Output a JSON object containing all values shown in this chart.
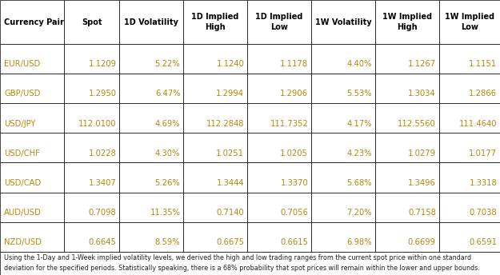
{
  "headers": [
    "Currency Pair",
    "Spot",
    "1D Volatility",
    "1D Implied\nHigh",
    "1D Implied\nLow",
    "1W Volatility",
    "1W Implied\nHigh",
    "1W Implied\nLow"
  ],
  "rows": [
    [
      "EUR/USD",
      "1.1209",
      "5.22%",
      "1.1240",
      "1.1178",
      "4.40%",
      "1.1267",
      "1.1151"
    ],
    [
      "GBP/USD",
      "1.2950",
      "6.47%",
      "1.2994",
      "1.2906",
      "5.53%",
      "1.3034",
      "1.2866"
    ],
    [
      "USD/JPY",
      "112.0100",
      "4.69%",
      "112.2848",
      "111.7352",
      "4.17%",
      "112.5560",
      "111.4640"
    ],
    [
      "USD/CHF",
      "1.0228",
      "4.30%",
      "1.0251",
      "1.0205",
      "4.23%",
      "1.0279",
      "1.0177"
    ],
    [
      "USD/CAD",
      "1.3407",
      "5.26%",
      "1.3444",
      "1.3370",
      "5.68%",
      "1.3496",
      "1.3318"
    ],
    [
      "AUD/USD",
      "0.7098",
      "11.35%",
      "0.7140",
      "0.7056",
      "7.20%",
      "0.7158",
      "0.7038"
    ],
    [
      "NZD/USD",
      "0.6645",
      "8.59%",
      "0.6675",
      "0.6615",
      "6.98%",
      "0.6699",
      "0.6591"
    ]
  ],
  "footer_line1": "Using the 1-Day and 1-Week implied volatility levels, we derived the high and low trading ranges from the current spot price within one standard",
  "footer_line2": "deviation for the specified periods. Statistically speaking, there is a 68% probability that spot prices will remain within the lower and upper bounds.",
  "header_text_color": "#000000",
  "row_text_color": "#b8860b",
  "grid_color": "#000000",
  "bg_color": "#ffffff",
  "col_widths_rel": [
    1.15,
    1.0,
    1.15,
    1.15,
    1.15,
    1.15,
    1.15,
    1.1
  ],
  "header_fontsize": 7.0,
  "data_fontsize": 7.2,
  "footer_fontsize": 5.8
}
